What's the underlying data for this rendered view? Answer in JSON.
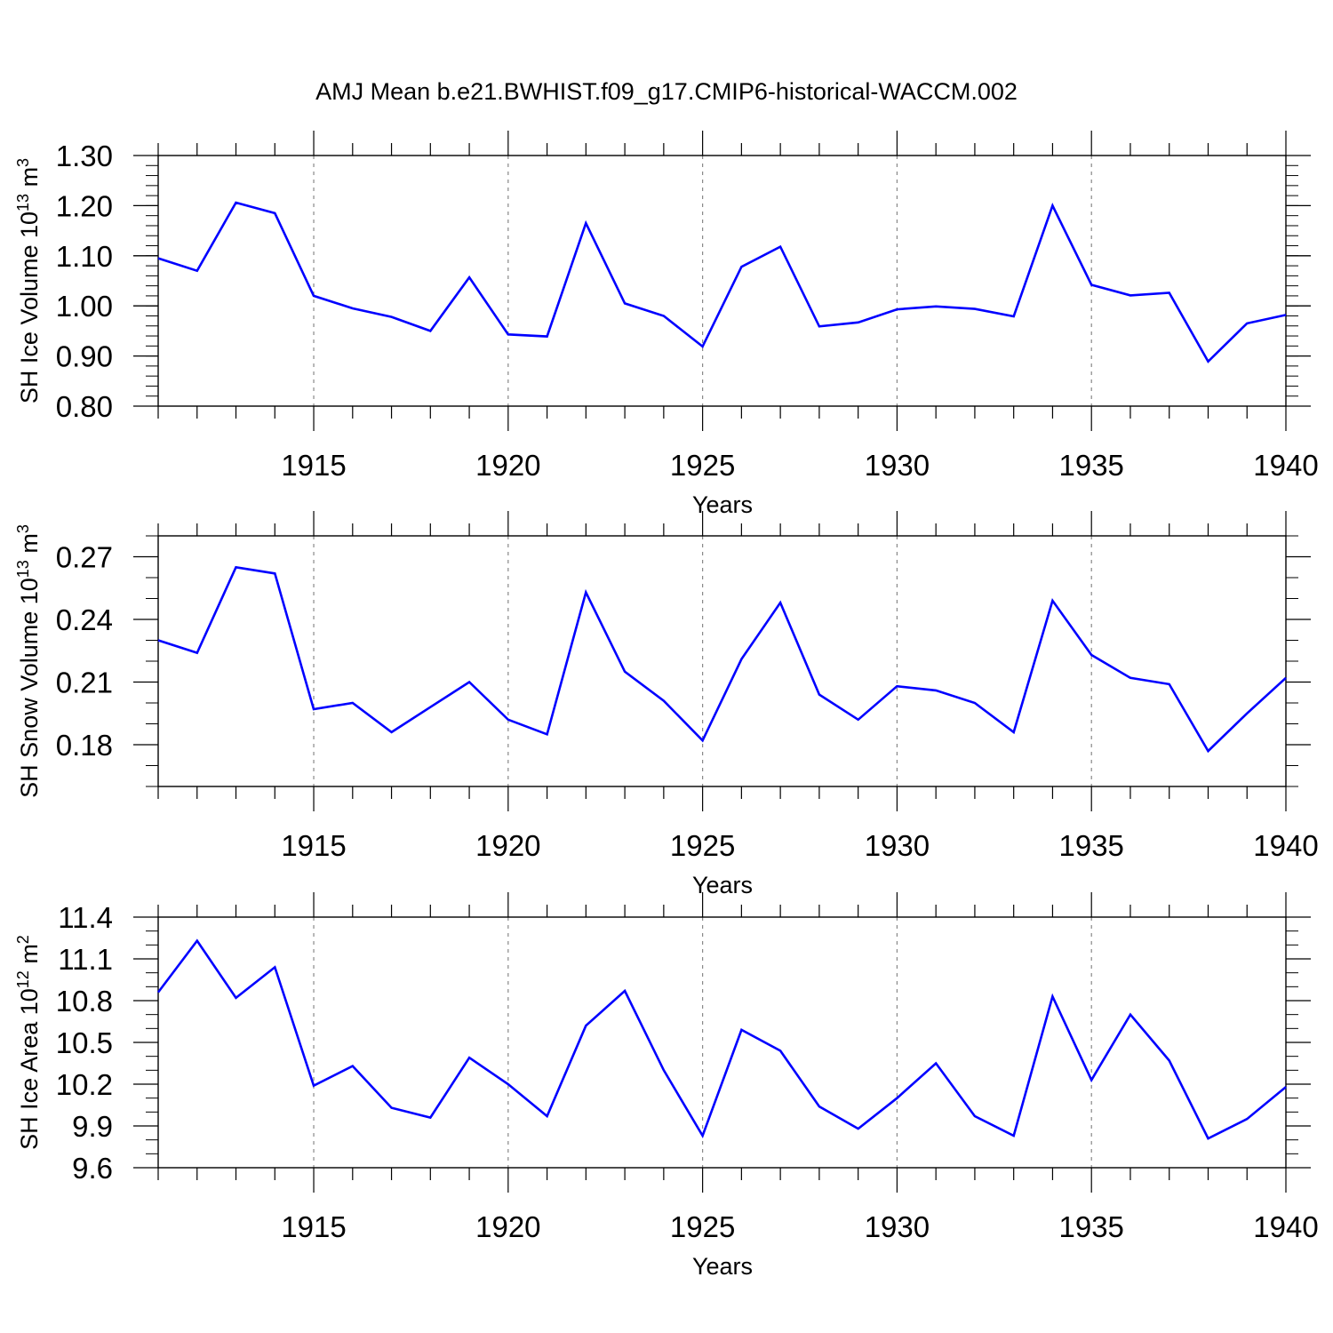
{
  "title": "AMJ Mean b.e21.BWHIST.f09_g17.CMIP6-historical-WACCM.002",
  "line_color": "#0000ff",
  "chart_data": [
    {
      "type": "line",
      "ylabel_main": "SH Ice Volume 10",
      "ylabel_exp": "13",
      "ylabel_unit": " m",
      "ylabel_unit_exp": "3",
      "xlabel": "Years",
      "xlim": [
        1911,
        1940
      ],
      "ylim": [
        0.8,
        1.3
      ],
      "grid": "vertical dashed at major x ticks",
      "x_ticks": [
        1915,
        1920,
        1925,
        1930,
        1935,
        1940
      ],
      "x_tick_labels": [
        "1915",
        "1920",
        "1925",
        "1930",
        "1935",
        "1940"
      ],
      "y_ticks": [
        0.8,
        0.9,
        1.0,
        1.1,
        1.2,
        1.3
      ],
      "y_tick_labels": [
        "0.80",
        "0.90",
        "1.00",
        "1.10",
        "1.20",
        "1.30"
      ],
      "y_minor_step": 0.02,
      "x": [
        1911,
        1912,
        1913,
        1914,
        1915,
        1916,
        1917,
        1918,
        1919,
        1920,
        1921,
        1922,
        1923,
        1924,
        1925,
        1926,
        1927,
        1928,
        1929,
        1930,
        1931,
        1932,
        1933,
        1934,
        1935,
        1936,
        1937,
        1938,
        1939,
        1940
      ],
      "y": [
        1.095,
        1.07,
        1.206,
        1.185,
        1.02,
        0.995,
        0.978,
        0.95,
        1.057,
        0.943,
        0.939,
        1.165,
        1.005,
        0.98,
        0.919,
        1.078,
        1.118,
        0.959,
        0.967,
        0.993,
        0.999,
        0.994,
        0.979,
        1.2,
        1.042,
        1.021,
        1.026,
        0.889,
        0.965,
        0.982
      ]
    },
    {
      "type": "line",
      "ylabel_main": "SH Snow Volume 10",
      "ylabel_exp": "13",
      "ylabel_unit": " m",
      "ylabel_unit_exp": "3",
      "xlabel": "Years",
      "xlim": [
        1911,
        1940
      ],
      "ylim": [
        0.16,
        0.28
      ],
      "grid": "vertical dashed at major x ticks",
      "x_ticks": [
        1915,
        1920,
        1925,
        1930,
        1935,
        1940
      ],
      "x_tick_labels": [
        "1915",
        "1920",
        "1925",
        "1930",
        "1935",
        "1940"
      ],
      "y_ticks": [
        0.18,
        0.21,
        0.24,
        0.27
      ],
      "y_tick_labels": [
        "0.18",
        "0.21",
        "0.24",
        "0.27"
      ],
      "y_minor_step": 0.01,
      "x": [
        1911,
        1912,
        1913,
        1914,
        1915,
        1916,
        1917,
        1918,
        1919,
        1920,
        1921,
        1922,
        1923,
        1924,
        1925,
        1926,
        1927,
        1928,
        1929,
        1930,
        1931,
        1932,
        1933,
        1934,
        1935,
        1936,
        1937,
        1938,
        1939,
        1940
      ],
      "y": [
        0.23,
        0.224,
        0.265,
        0.262,
        0.197,
        0.2,
        0.186,
        0.198,
        0.21,
        0.192,
        0.185,
        0.253,
        0.215,
        0.201,
        0.182,
        0.221,
        0.248,
        0.204,
        0.192,
        0.208,
        0.206,
        0.2,
        0.186,
        0.249,
        0.223,
        0.212,
        0.209,
        0.177,
        0.195,
        0.212
      ]
    },
    {
      "type": "line",
      "ylabel_main": "SH Ice Area 10",
      "ylabel_exp": "12",
      "ylabel_unit": " m",
      "ylabel_unit_exp": "2",
      "xlabel": "Years",
      "xlim": [
        1911,
        1940
      ],
      "ylim": [
        9.6,
        11.4
      ],
      "grid": "vertical dashed at major x ticks",
      "x_ticks": [
        1915,
        1920,
        1925,
        1930,
        1935,
        1940
      ],
      "x_tick_labels": [
        "1915",
        "1920",
        "1925",
        "1930",
        "1935",
        "1940"
      ],
      "y_ticks": [
        9.6,
        9.9,
        10.2,
        10.5,
        10.8,
        11.1,
        11.4
      ],
      "y_tick_labels": [
        "9.6",
        "9.9",
        "10.2",
        "10.5",
        "10.8",
        "11.1",
        "11.4"
      ],
      "y_minor_step": 0.1,
      "x": [
        1911,
        1912,
        1913,
        1914,
        1915,
        1916,
        1917,
        1918,
        1919,
        1920,
        1921,
        1922,
        1923,
        1924,
        1925,
        1926,
        1927,
        1928,
        1929,
        1930,
        1931,
        1932,
        1933,
        1934,
        1935,
        1936,
        1937,
        1938,
        1939,
        1940
      ],
      "y": [
        10.86,
        11.23,
        10.82,
        11.04,
        10.19,
        10.33,
        10.03,
        9.96,
        10.39,
        10.2,
        9.97,
        10.62,
        10.87,
        10.3,
        9.83,
        10.59,
        10.44,
        10.04,
        9.88,
        10.1,
        10.35,
        9.97,
        9.83,
        10.83,
        10.23,
        10.7,
        10.37,
        9.81,
        9.95,
        10.18
      ]
    }
  ]
}
